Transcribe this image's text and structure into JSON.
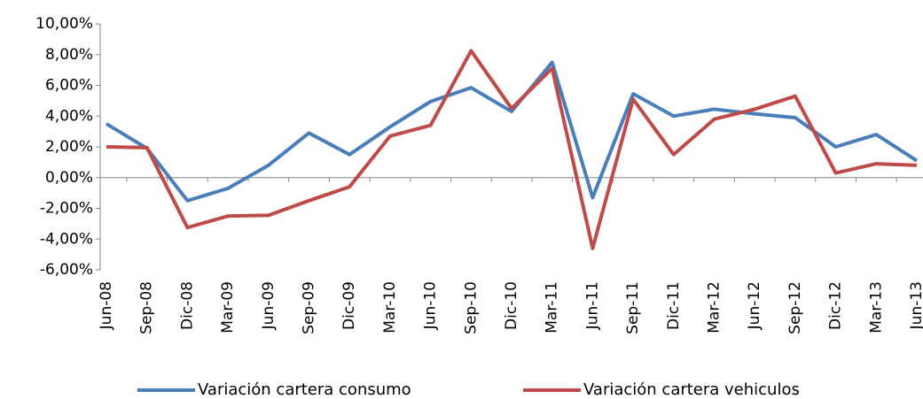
{
  "chart_data": {
    "type": "line",
    "categories": [
      "Jun-08",
      "Sep-08",
      "Dic-08",
      "Mar-09",
      "Jun-09",
      "Sep-09",
      "Dic-09",
      "Mar-10",
      "Jun-10",
      "Sep-10",
      "Dic-10",
      "Mar-11",
      "Jun-11",
      "Sep-11",
      "Dic-11",
      "Mar-12",
      "Jun-12",
      "Sep-12",
      "Dic-12",
      "Mar-13",
      "Jun-13"
    ],
    "series": [
      {
        "name": "Variación cartera consumo",
        "color": "#4a7ebb",
        "values": [
          3.5,
          1.9,
          -1.5,
          -0.7,
          0.8,
          2.9,
          1.5,
          3.3,
          4.95,
          5.85,
          4.3,
          7.5,
          -1.3,
          5.45,
          4.0,
          4.45,
          4.15,
          3.9,
          2.0,
          2.8,
          1.1
        ]
      },
      {
        "name": "Variación cartera vehiculos",
        "color": "#be4b48",
        "values": [
          2.0,
          1.95,
          -3.25,
          -2.5,
          -2.45,
          -1.5,
          -0.6,
          2.7,
          3.4,
          8.25,
          4.5,
          7.1,
          -4.6,
          5.1,
          1.5,
          3.8,
          4.45,
          5.3,
          0.3,
          0.9,
          0.8
        ]
      }
    ],
    "ylim": [
      -6,
      10
    ],
    "yticks": [
      {
        "value": -6,
        "label": "-6,00%"
      },
      {
        "value": -4,
        "label": "-4,00%"
      },
      {
        "value": -2,
        "label": "-2,00%"
      },
      {
        "value": 0,
        "label": "0,00%"
      },
      {
        "value": 2,
        "label": "2,00%"
      },
      {
        "value": 4,
        "label": "4,00%"
      },
      {
        "value": 6,
        "label": "6,00%"
      },
      {
        "value": 8,
        "label": "8,00%"
      },
      {
        "value": 10,
        "label": "10,00%"
      }
    ],
    "grid": false,
    "legend": "bottom"
  }
}
